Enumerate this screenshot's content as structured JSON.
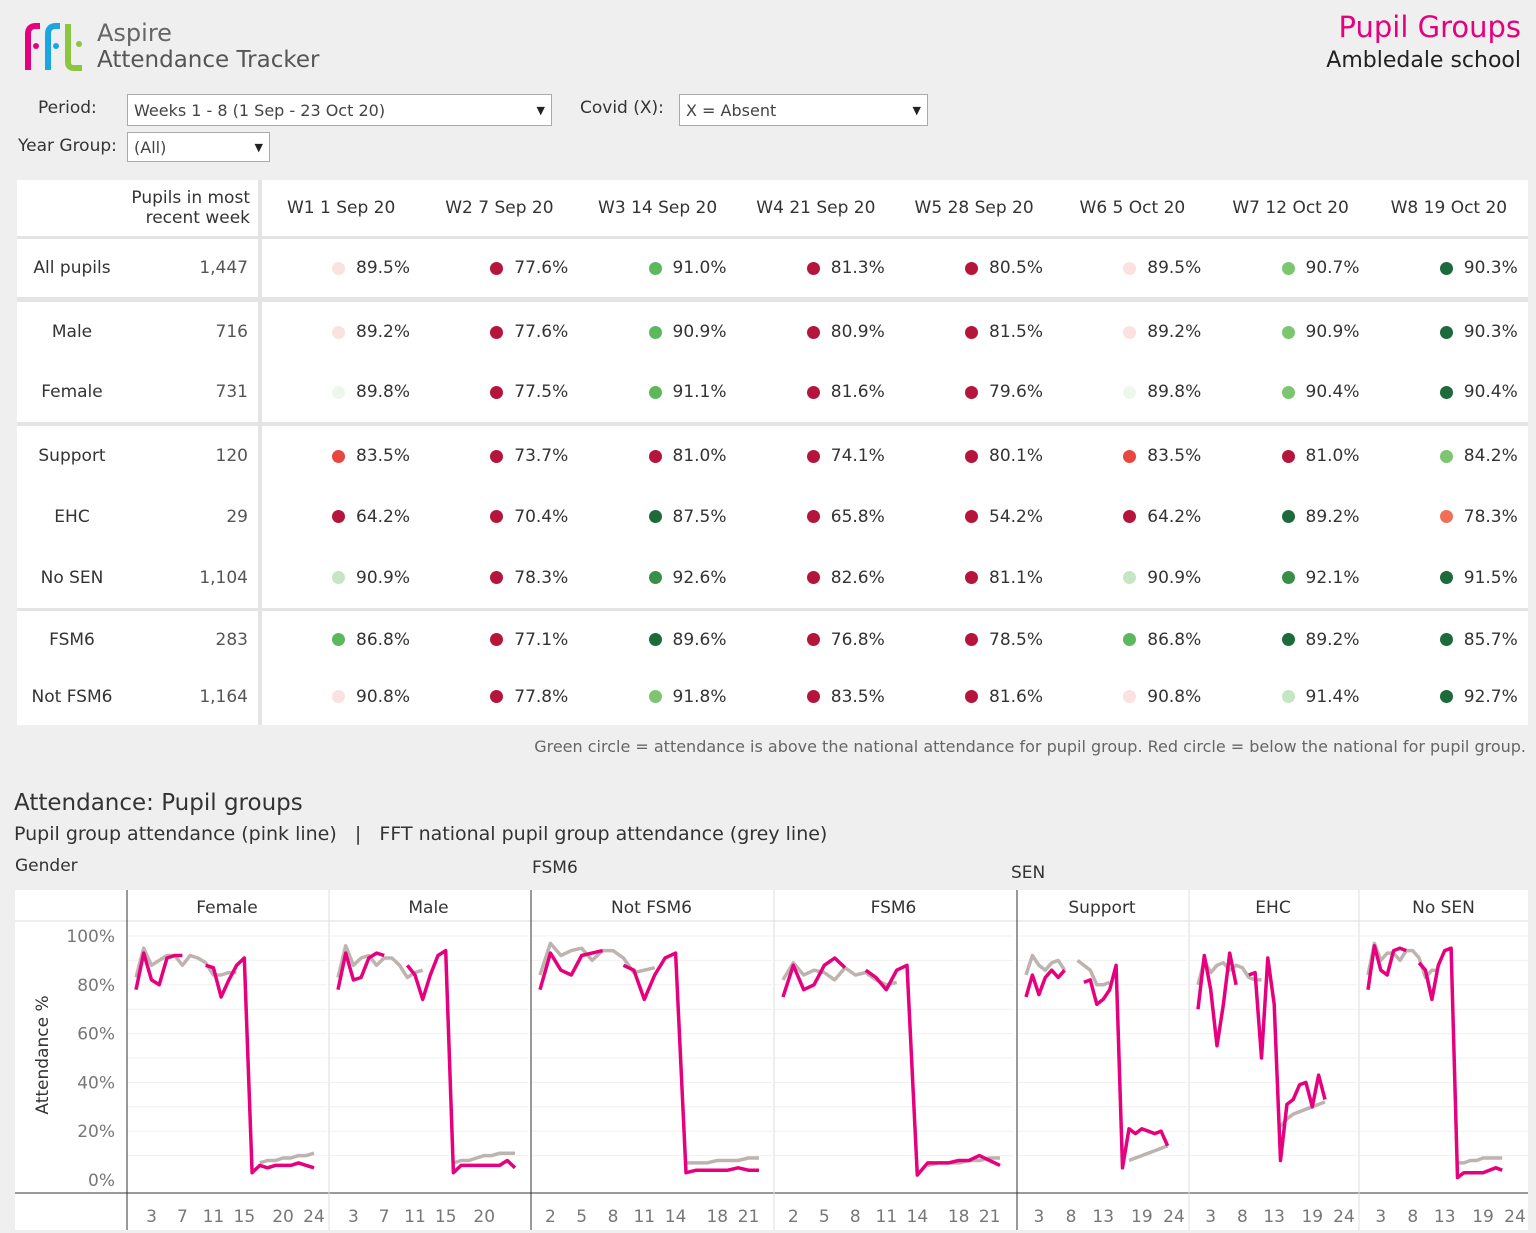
{
  "header": {
    "logo_text": "fft",
    "app_name": "Aspire",
    "app_subtitle": "Attendance Tracker",
    "page_title": "Pupil Groups",
    "school": "Ambledale school"
  },
  "filters": {
    "period": {
      "label": "Period:",
      "value": "Weeks 1 - 8 (1 Sep - 23 Oct 20)"
    },
    "covid": {
      "label": "Covid (X):",
      "value": "X = Absent"
    },
    "year_group": {
      "label": "Year Group:",
      "value": "(All)"
    }
  },
  "colors": {
    "pale_red": "#fbe1e1",
    "pale_green": "#eef7ec",
    "red": "#b5153b",
    "light_red": "#e8473f",
    "coral": "#f07057",
    "green": "#5db85c",
    "light_green": "#7cc66f",
    "mint": "#c5e6c2",
    "mid_green": "#3a8f48",
    "dark_green": "#1d6b3b",
    "pink_line": "#e6007e",
    "grey_line": "#bdb4b0"
  },
  "table": {
    "count_header": "Pupils in most recent week",
    "weeks": [
      "W1 1 Sep 20",
      "W2 7 Sep 20",
      "W3 14 Sep 20",
      "W4 21 Sep 20",
      "W5 28 Sep 20",
      "W6 5 Oct 20",
      "W7 12 Oct 20",
      "W8 19 Oct 20"
    ],
    "groups": [
      {
        "rows": [
          {
            "label": "All pupils",
            "count": "1,447",
            "values": [
              "89.5%",
              "77.6%",
              "91.0%",
              "81.3%",
              "80.5%",
              "89.5%",
              "90.7%",
              "90.3%"
            ],
            "dots": [
              "pale_red",
              "red",
              "green",
              "red",
              "red",
              "pale_red",
              "light_green",
              "dark_green"
            ]
          }
        ]
      },
      {
        "rows": [
          {
            "label": "Male",
            "count": "716",
            "values": [
              "89.2%",
              "77.6%",
              "90.9%",
              "80.9%",
              "81.5%",
              "89.2%",
              "90.9%",
              "90.3%"
            ],
            "dots": [
              "pale_red",
              "red",
              "green",
              "red",
              "red",
              "pale_red",
              "light_green",
              "dark_green"
            ]
          },
          {
            "label": "Female",
            "count": "731",
            "values": [
              "89.8%",
              "77.5%",
              "91.1%",
              "81.6%",
              "79.6%",
              "89.8%",
              "90.4%",
              "90.4%"
            ],
            "dots": [
              "pale_green",
              "red",
              "green",
              "red",
              "red",
              "pale_green",
              "light_green",
              "dark_green"
            ]
          }
        ]
      },
      {
        "rows": [
          {
            "label": "Support",
            "count": "120",
            "values": [
              "83.5%",
              "73.7%",
              "81.0%",
              "74.1%",
              "80.1%",
              "83.5%",
              "81.0%",
              "84.2%"
            ],
            "dots": [
              "light_red",
              "red",
              "red",
              "red",
              "red",
              "light_red",
              "red",
              "light_green"
            ]
          },
          {
            "label": "EHC",
            "count": "29",
            "values": [
              "64.2%",
              "70.4%",
              "87.5%",
              "65.8%",
              "54.2%",
              "64.2%",
              "89.2%",
              "78.3%"
            ],
            "dots": [
              "red",
              "red",
              "dark_green",
              "red",
              "red",
              "red",
              "dark_green",
              "coral"
            ]
          },
          {
            "label": "No SEN",
            "count": "1,104",
            "values": [
              "90.9%",
              "78.3%",
              "92.6%",
              "82.6%",
              "81.1%",
              "90.9%",
              "92.1%",
              "91.5%"
            ],
            "dots": [
              "mint",
              "red",
              "mid_green",
              "red",
              "red",
              "mint",
              "mid_green",
              "dark_green"
            ]
          }
        ]
      },
      {
        "rows": [
          {
            "label": "FSM6",
            "count": "283",
            "values": [
              "86.8%",
              "77.1%",
              "89.6%",
              "76.8%",
              "78.5%",
              "86.8%",
              "89.2%",
              "85.7%"
            ],
            "dots": [
              "green",
              "red",
              "dark_green",
              "red",
              "red",
              "green",
              "dark_green",
              "dark_green"
            ]
          },
          {
            "label": "Not FSM6",
            "count": "1,164",
            "values": [
              "90.8%",
              "77.8%",
              "91.8%",
              "83.5%",
              "81.6%",
              "90.8%",
              "91.4%",
              "92.7%"
            ],
            "dots": [
              "pale_red",
              "red",
              "light_green",
              "red",
              "red",
              "pale_red",
              "mint",
              "dark_green"
            ]
          }
        ]
      }
    ]
  },
  "note": "Green circle = attendance is above the national attendance for pupil group. Red circle = below the national for pupil group.",
  "charts_section": {
    "title": "Attendance: Pupil groups",
    "subtitle": "Pupil group attendance (pink line)   |   FFT national pupil group attendance (grey line)"
  },
  "chart_data": {
    "type": "line",
    "ylabel": "Attendance %",
    "yticks": [
      "100%",
      "80%",
      "60%",
      "40%",
      "20%",
      "0%"
    ],
    "ylim": [
      0,
      100
    ],
    "groups": [
      {
        "label": "Gender"
      },
      {
        "label": "FSM6"
      },
      {
        "label": "SEN"
      }
    ],
    "panels": [
      {
        "group": "Gender",
        "name": "Female",
        "xticks": [
          3,
          7,
          11,
          15,
          20,
          24
        ],
        "pink": [
          78,
          93,
          82,
          80,
          91,
          92,
          92,
          null,
          null,
          88,
          87,
          75,
          82,
          88,
          91,
          3,
          6,
          5,
          6,
          6,
          6,
          7,
          6,
          5
        ],
        "grey": [
          83,
          95,
          88,
          90,
          92,
          92,
          88,
          92,
          91,
          89,
          84,
          84,
          85,
          85,
          null,
          null,
          7,
          8,
          8,
          9,
          9,
          10,
          10,
          11
        ]
      },
      {
        "group": "Gender",
        "name": "Male",
        "xticks": [
          3,
          7,
          11,
          15,
          20
        ],
        "pink": [
          78,
          93,
          82,
          83,
          91,
          93,
          92,
          null,
          null,
          88,
          84,
          74,
          84,
          92,
          94,
          3,
          6,
          6,
          6,
          6,
          6,
          6,
          8,
          5
        ],
        "grey": [
          83,
          96,
          88,
          91,
          92,
          88,
          91,
          91,
          88,
          83,
          85,
          86,
          null,
          null,
          null,
          7,
          8,
          8,
          9,
          10,
          10,
          11,
          11,
          11
        ]
      },
      {
        "group": "FSM6",
        "name": "Not FSM6",
        "xticks": [
          2,
          5,
          8,
          11,
          14,
          18,
          21
        ],
        "pink": [
          78,
          93,
          86,
          84,
          92,
          93,
          94,
          null,
          88,
          86,
          74,
          84,
          91,
          93,
          3,
          4,
          4,
          4,
          4,
          5,
          4,
          4
        ],
        "grey": [
          84,
          97,
          92,
          94,
          95,
          90,
          94,
          94,
          91,
          85,
          86,
          87,
          null,
          null,
          7,
          7,
          7,
          8,
          8,
          8,
          9,
          9
        ]
      },
      {
        "group": "FSM6",
        "name": "FSM6",
        "xticks": [
          2,
          5,
          8,
          11,
          14,
          18,
          21
        ],
        "pink": [
          75,
          88,
          78,
          80,
          88,
          91,
          87,
          null,
          86,
          83,
          78,
          86,
          88,
          2,
          7,
          7,
          7,
          8,
          8,
          10,
          8,
          6
        ],
        "grey": [
          82,
          89,
          84,
          86,
          85,
          82,
          87,
          84,
          85,
          82,
          80,
          81,
          null,
          null,
          6,
          7,
          7,
          7,
          8,
          8,
          9,
          9
        ]
      },
      {
        "group": "SEN",
        "name": "Support",
        "xticks": [
          3,
          8,
          13,
          19,
          24
        ],
        "pink": [
          75,
          84,
          76,
          83,
          86,
          83,
          86,
          null,
          null,
          81,
          82,
          72,
          74,
          78,
          88,
          5,
          21,
          19,
          21,
          20,
          19,
          20,
          14
        ],
        "grey": [
          84,
          92,
          88,
          86,
          89,
          90,
          86,
          null,
          90,
          88,
          86,
          80,
          80,
          81,
          null,
          null,
          8,
          9,
          10,
          11,
          12,
          13,
          14
        ]
      },
      {
        "group": "SEN",
        "name": "EHC",
        "xticks": [
          3,
          8,
          13,
          19,
          24
        ],
        "pink": [
          70,
          92,
          78,
          55,
          72,
          93,
          80,
          null,
          84,
          85,
          50,
          91,
          72,
          8,
          31,
          33,
          39,
          40,
          30,
          43,
          33
        ],
        "grey": [
          80,
          90,
          85,
          88,
          89,
          86,
          88,
          87,
          83,
          82,
          82,
          null,
          null,
          22,
          25,
          27,
          28,
          29,
          30,
          31,
          32
        ]
      },
      {
        "group": "SEN",
        "name": "No SEN",
        "xticks": [
          3,
          8,
          13,
          19,
          24
        ],
        "pink": [
          78,
          96,
          86,
          84,
          94,
          95,
          94,
          null,
          89,
          86,
          74,
          88,
          94,
          95,
          1,
          3,
          3,
          3,
          3,
          4,
          5,
          4
        ],
        "grey": [
          84,
          97,
          90,
          93,
          93,
          90,
          94,
          94,
          91,
          83,
          86,
          86,
          null,
          null,
          7,
          7,
          8,
          8,
          9,
          9,
          9,
          9
        ]
      }
    ]
  }
}
